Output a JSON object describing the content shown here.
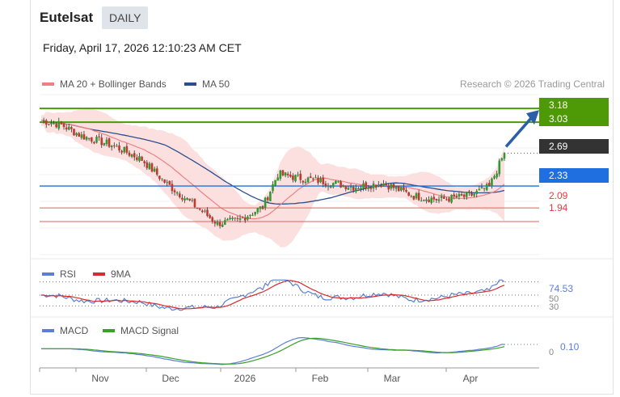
{
  "header": {
    "title": "Eutelsat",
    "interval_label": "DAILY",
    "timestamp": "Friday, April 17, 2026 12:10:23 AM CET"
  },
  "legend": {
    "ma20_label": "MA 20 + Bollinger Bands",
    "ma50_label": "MA 50",
    "credit": "Research © 2026 Trading Central",
    "rsi_label": "RSI",
    "rsi_ma_label": "9MA",
    "macd_label": "MACD",
    "macd_signal_label": "MACD Signal"
  },
  "colors": {
    "ma20": "#f08080",
    "ma50": "#2b4f8c",
    "bollinger_fill": "#fcdada",
    "candle_up": "#2f9a2f",
    "candle_down": "#c0392b",
    "resistance": "#4d9a06",
    "pivot": "#1f6fe0",
    "support": "#e06060",
    "last": "#333333",
    "rsi": "#5b7fd6",
    "rsi_ma": "#d92b2b",
    "macd": "#5b7fd6",
    "macd_signal": "#3aa02a"
  },
  "levels": {
    "resistance_1": "3.18",
    "resistance_2": "3.03",
    "last": "2.69",
    "pivot": "2.33",
    "support_1": "2.09",
    "support_2": "1.94"
  },
  "rsi_panel": {
    "value": "74.53",
    "ref_50": "50",
    "ref_30": "30"
  },
  "macd_panel": {
    "value": "0.10",
    "ref_0": "0"
  },
  "chart_data": {
    "type": "candlestick",
    "x_ticks": [
      "Nov",
      "Dec",
      "2026",
      "Feb",
      "Mar",
      "Apr"
    ],
    "y_range": [
      1.55,
      3.35
    ],
    "price_approx": {
      "x": [
        "Oct",
        "Nov",
        "Dec",
        "2026",
        "Feb",
        "Mar",
        "Apr",
        "Apr 16"
      ],
      "close": [
        3.05,
        2.78,
        2.15,
        1.98,
        2.4,
        2.25,
        2.28,
        2.69
      ]
    },
    "horizontal_levels": [
      3.18,
      3.03,
      2.69,
      2.33,
      2.09,
      1.94
    ],
    "projection": "upward arrow toward 3.18",
    "rsi_last": 74.53,
    "rsi_ref_lines": [
      50,
      30
    ],
    "macd_last": 0.1,
    "macd_ref_line": 0
  }
}
